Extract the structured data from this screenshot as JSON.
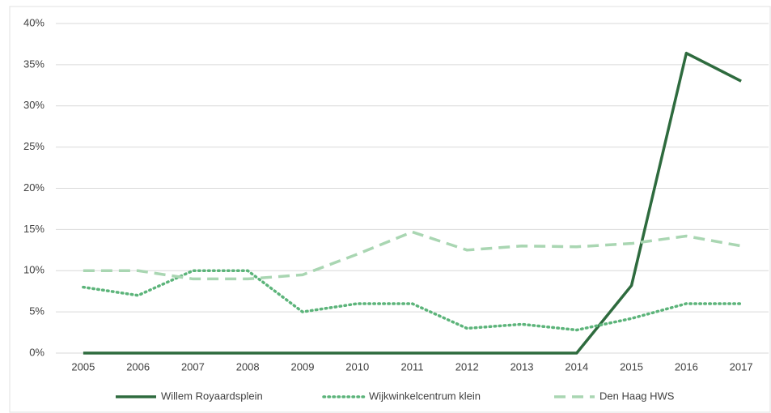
{
  "chart_data": {
    "type": "line",
    "categories": [
      "2005",
      "2006",
      "2007",
      "2008",
      "2009",
      "2010",
      "2011",
      "2012",
      "2013",
      "2014",
      "2015",
      "2016",
      "2017"
    ],
    "series": [
      {
        "name": "Willem Royaardsplein",
        "color": "#2e6b3e",
        "style": "solid",
        "values": [
          0,
          0,
          0,
          0,
          0,
          0,
          0,
          0,
          0,
          0,
          8.2,
          36.4,
          33
        ]
      },
      {
        "name": "Wijkwinkelcentrum klein",
        "color": "#5cb47a",
        "style": "dotted",
        "values": [
          8,
          7,
          10,
          10,
          5,
          6,
          6,
          3,
          3.5,
          2.8,
          4.2,
          6,
          6
        ]
      },
      {
        "name": "Den Haag HWS",
        "color": "#a9d6b2",
        "style": "dashed",
        "values": [
          10,
          10,
          9,
          9,
          9.5,
          12,
          14.7,
          12.5,
          13,
          12.9,
          13.3,
          14.2,
          13
        ]
      }
    ],
    "ylim": [
      0,
      40
    ],
    "yticks": [
      {
        "value": 0,
        "label": "0%"
      },
      {
        "value": 5,
        "label": "5%"
      },
      {
        "value": 10,
        "label": "10%"
      },
      {
        "value": 15,
        "label": "15%"
      },
      {
        "value": 20,
        "label": "20%"
      },
      {
        "value": 25,
        "label": "25%"
      },
      {
        "value": 30,
        "label": "30%"
      },
      {
        "value": 35,
        "label": "35%"
      },
      {
        "value": 40,
        "label": "40%"
      }
    ],
    "grid": true,
    "legend": "bottom"
  }
}
